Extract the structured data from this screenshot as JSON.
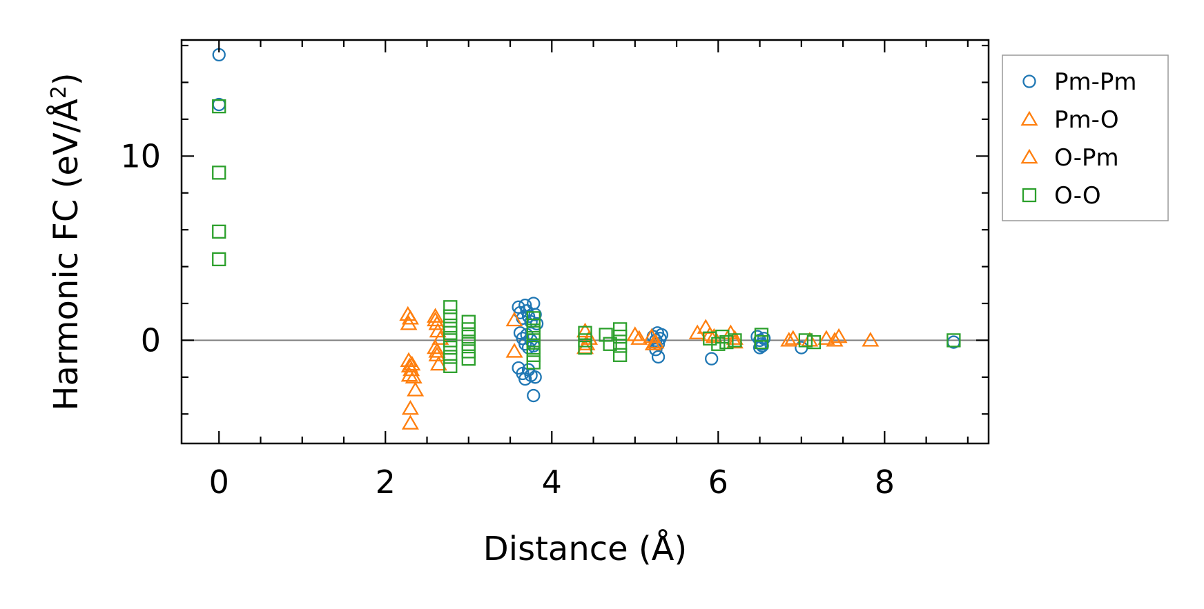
{
  "chart_data": {
    "type": "scatter",
    "xlabel": "Distance (Å)",
    "ylabel_main": "Harmonic FC (eV/Å",
    "ylabel_sup": "2",
    "ylabel_tail": ")",
    "xlim": [
      -0.45,
      9.25
    ],
    "ylim": [
      -5.6,
      16.3
    ],
    "xticks": [
      0,
      2,
      4,
      6,
      8
    ],
    "xtick_labels": [
      "0",
      "2",
      "4",
      "6",
      "8"
    ],
    "yticks": [
      0,
      10
    ],
    "ytick_labels": [
      "0",
      "10"
    ],
    "zero_line": true,
    "legend_position": "outside-top-right",
    "series": [
      {
        "name": "Pm-Pm",
        "marker": "circle",
        "color": "#1f77b4",
        "points": [
          [
            0.0,
            15.5
          ],
          [
            0.0,
            12.8
          ],
          [
            3.6,
            1.8
          ],
          [
            3.62,
            1.5
          ],
          [
            3.65,
            1.2
          ],
          [
            3.68,
            1.9
          ],
          [
            3.7,
            1.6
          ],
          [
            3.72,
            1.3
          ],
          [
            3.75,
            1.0
          ],
          [
            3.78,
            2.0
          ],
          [
            3.8,
            1.4
          ],
          [
            3.82,
            0.9
          ],
          [
            3.62,
            0.4
          ],
          [
            3.65,
            0.1
          ],
          [
            3.68,
            -0.2
          ],
          [
            3.7,
            0.3
          ],
          [
            3.72,
            -0.4
          ],
          [
            3.75,
            0.0
          ],
          [
            3.78,
            -0.3
          ],
          [
            3.6,
            -1.5
          ],
          [
            3.65,
            -1.8
          ],
          [
            3.68,
            -2.1
          ],
          [
            3.72,
            -1.6
          ],
          [
            3.75,
            -1.9
          ],
          [
            3.8,
            -2.0
          ],
          [
            3.78,
            -3.0
          ],
          [
            5.22,
            0.2
          ],
          [
            5.25,
            0.0
          ],
          [
            5.27,
            0.4
          ],
          [
            5.28,
            -0.2
          ],
          [
            5.3,
            0.1
          ],
          [
            5.32,
            0.3
          ],
          [
            5.25,
            -0.5
          ],
          [
            5.28,
            -0.9
          ],
          [
            5.92,
            -1.0
          ],
          [
            6.47,
            0.2
          ],
          [
            6.5,
            0.0
          ],
          [
            6.52,
            -0.2
          ],
          [
            6.55,
            0.1
          ],
          [
            6.5,
            -0.4
          ],
          [
            6.53,
            -0.3
          ],
          [
            7.0,
            -0.4
          ],
          [
            8.83,
            -0.1
          ]
        ]
      },
      {
        "name": "Pm-O",
        "marker": "triangle",
        "color": "#ff7f0e",
        "points": [
          [
            2.27,
            1.4
          ],
          [
            2.28,
            0.9
          ],
          [
            2.28,
            -1.1
          ],
          [
            2.29,
            -1.4
          ],
          [
            2.29,
            -1.9
          ],
          [
            2.31,
            -1.6
          ],
          [
            2.3,
            -3.7
          ],
          [
            2.3,
            -4.5
          ],
          [
            2.36,
            -2.7
          ],
          [
            2.34,
            -2.0
          ],
          [
            2.6,
            1.3
          ],
          [
            2.62,
            0.9
          ],
          [
            2.63,
            0.5
          ],
          [
            2.6,
            -0.4
          ],
          [
            2.62,
            -0.8
          ],
          [
            2.64,
            -1.3
          ],
          [
            2.66,
            0.1
          ],
          [
            3.55,
            1.1
          ],
          [
            3.55,
            -0.6
          ],
          [
            4.4,
            0.5
          ],
          [
            4.45,
            0.1
          ],
          [
            4.42,
            -0.2
          ],
          [
            5.0,
            0.3
          ],
          [
            5.2,
            0.2
          ],
          [
            5.22,
            -0.2
          ],
          [
            5.75,
            0.4
          ],
          [
            5.85,
            0.7
          ],
          [
            5.9,
            0.3
          ],
          [
            6.15,
            0.4
          ],
          [
            6.2,
            0.1
          ],
          [
            6.9,
            0.1
          ],
          [
            7.1,
            0.0
          ],
          [
            7.3,
            0.1
          ],
          [
            7.45,
            0.2
          ],
          [
            7.83,
            0.0
          ]
        ]
      },
      {
        "name": "O-Pm",
        "marker": "triangle",
        "color": "#ff7f0e",
        "points": [
          [
            2.3,
            1.2
          ],
          [
            2.32,
            -1.3
          ],
          [
            2.6,
            1.1
          ],
          [
            2.62,
            -0.6
          ],
          [
            4.4,
            -0.4
          ],
          [
            5.05,
            0.1
          ],
          [
            5.25,
            -0.1
          ],
          [
            5.95,
            0.2
          ],
          [
            6.2,
            -0.1
          ],
          [
            6.85,
            0.0
          ],
          [
            7.4,
            0.0
          ]
        ]
      },
      {
        "name": "O-O",
        "marker": "square",
        "color": "#2ca02c",
        "points": [
          [
            0.0,
            12.7
          ],
          [
            0.0,
            9.1
          ],
          [
            0.0,
            5.9
          ],
          [
            0.0,
            4.4
          ],
          [
            2.78,
            1.8
          ],
          [
            2.78,
            1.3
          ],
          [
            2.78,
            0.8
          ],
          [
            2.78,
            0.4
          ],
          [
            2.78,
            0.0
          ],
          [
            2.78,
            -0.4
          ],
          [
            2.78,
            -0.9
          ],
          [
            2.78,
            -1.4
          ],
          [
            3.0,
            1.0
          ],
          [
            3.0,
            0.6
          ],
          [
            3.0,
            0.2
          ],
          [
            3.0,
            -0.2
          ],
          [
            3.0,
            -0.6
          ],
          [
            3.0,
            -1.0
          ],
          [
            3.78,
            1.2
          ],
          [
            3.78,
            0.8
          ],
          [
            3.78,
            0.4
          ],
          [
            3.78,
            0.0
          ],
          [
            3.78,
            -0.4
          ],
          [
            3.78,
            -0.8
          ],
          [
            3.78,
            -1.2
          ],
          [
            4.4,
            0.4
          ],
          [
            4.4,
            0.0
          ],
          [
            4.4,
            -0.4
          ],
          [
            4.65,
            0.3
          ],
          [
            4.7,
            -0.2
          ],
          [
            4.82,
            0.6
          ],
          [
            4.82,
            0.2
          ],
          [
            4.82,
            -0.3
          ],
          [
            4.82,
            -0.8
          ],
          [
            5.9,
            0.1
          ],
          [
            6.0,
            -0.2
          ],
          [
            6.05,
            0.2
          ],
          [
            6.1,
            -0.1
          ],
          [
            6.2,
            0.0
          ],
          [
            6.52,
            0.3
          ],
          [
            6.52,
            -0.1
          ],
          [
            7.05,
            0.0
          ],
          [
            7.15,
            -0.1
          ],
          [
            8.83,
            0.0
          ]
        ]
      }
    ]
  }
}
